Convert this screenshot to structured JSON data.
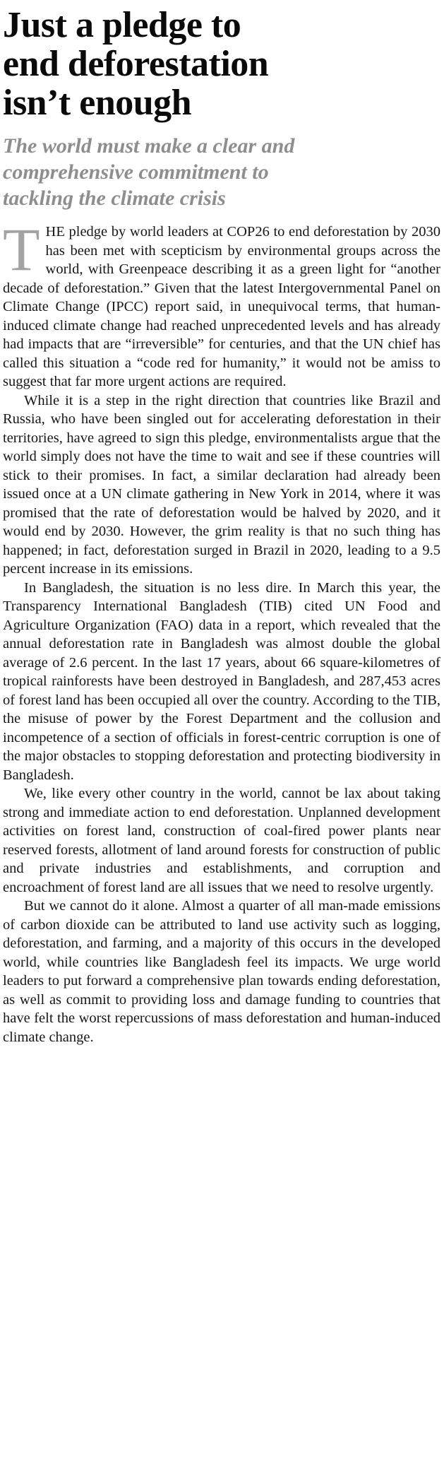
{
  "article": {
    "title_lines": [
      "Just a pledge to",
      "end deforestation",
      "isn’t enough"
    ],
    "subtitle_lines": [
      "The world must make a clear and",
      "comprehensive commitment to",
      "tackling the climate crisis"
    ],
    "drop_cap": "T",
    "paragraphs": [
      "HE pledge by world leaders at COP26 to end deforestation by 2030 has been met with scepticism by environmental groups across the world, with Greenpeace describing it as a green light for “another decade of deforestation.” Given that the latest Intergovernmental Panel on Climate Change (IPCC) report said, in unequivocal terms, that human-induced climate change had reached unprecedented levels and has already had impacts that are “irreversible” for centuries, and that the UN chief has called this situation a “code red for humanity,” it would not be amiss to suggest that far more urgent actions are required.",
      "While it is a step in the right direction that countries like Brazil and Russia, who have been singled out for accelerating deforestation in their territories, have agreed to sign this pledge, environmentalists argue that the world simply does not have the time to wait and see if these countries will stick to their promises. In fact, a similar declaration had already been issued once at a UN climate gathering in New York in 2014, where it was promised that the rate of deforestation would be halved by 2020, and it would end by 2030. However, the grim reality is that no such thing has happened; in fact, deforestation surged in Brazil in 2020, leading to a 9.5 percent increase in its emissions.",
      "In Bangladesh, the situation is no less dire. In March this year, the Transparency International Bangladesh (TIB) cited UN Food and Agriculture Organization (FAO) data in a report, which revealed that the annual deforestation rate in Bangladesh was almost double the global average of 2.6 percent. In the last 17 years, about 66 square-kilometres of tropical rainforests have been destroyed in Bangladesh, and 287,453 acres of forest land has been occupied all over the country. According to the TIB, the misuse of power by the Forest Department and the collusion and incompetence of a section of officials in forest-centric corruption is one of the major obstacles to stopping deforestation and protecting biodiversity in Bangladesh.",
      "We, like every other country in the world, cannot be lax about taking strong and immediate action to end deforestation. Unplanned development activities on forest land, construction of coal-fired power plants near reserved forests, allotment of land around forests for construction of public and private industries and establishments, and corruption and encroachment of forest land are all issues that we need to resolve urgently.",
      "But we cannot do it alone. Almost a quarter of all man-made emissions of carbon dioxide can be attributed to land use activity such as logging, deforestation, and farming, and a majority of this occurs in the developed world, while countries like Bangladesh feel its impacts. We urge world leaders to put forward a comprehensive plan towards ending deforestation, as well as commit to providing loss and damage funding to countries that have felt the worst repercussions of mass deforestation and human-induced climate change."
    ]
  },
  "colors": {
    "background": "#ffffff",
    "title": "#0a0a0a",
    "subtitle": "#8e8e8e",
    "body_text": "#161616",
    "drop_cap": "#a3a3a3"
  }
}
